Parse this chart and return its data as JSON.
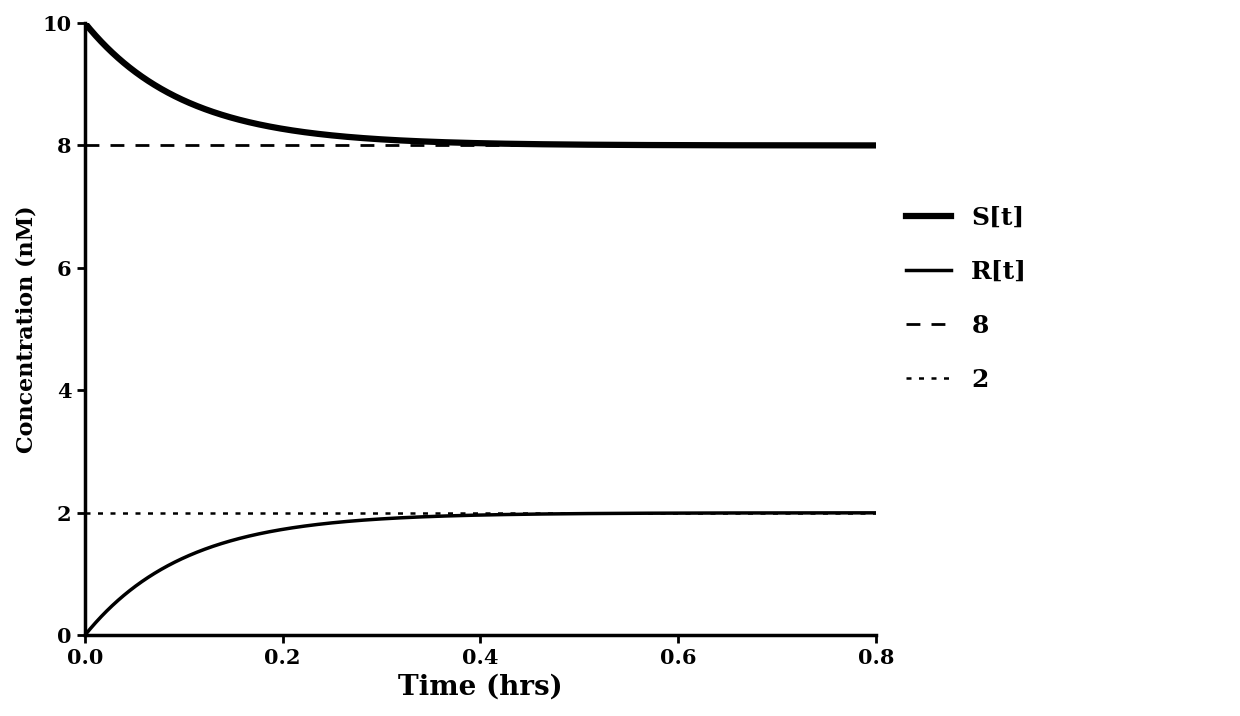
{
  "title": "",
  "xlabel": "Time (hrs)",
  "ylabel": "Concentration (nM)",
  "xlim": [
    0.0,
    0.8
  ],
  "ylim": [
    0.0,
    10.0
  ],
  "xticks": [
    0.0,
    0.2,
    0.4,
    0.6,
    0.8
  ],
  "yticks": [
    0,
    2,
    4,
    6,
    8,
    10
  ],
  "S0": 10.0,
  "R0": 0.0,
  "S_inf": 8.0,
  "R_inf": 2.0,
  "rate": 10.0,
  "hline_8": 8.0,
  "hline_2": 2.0,
  "line_color": "#000000",
  "dashed_color": "#000000",
  "legend_labels": [
    "S[t]",
    "R[t]",
    "8",
    "2"
  ],
  "S_lw": 4.5,
  "R_lw": 2.5,
  "dashed_lw_8": 2.0,
  "dashed_lw_2": 1.8,
  "xlabel_fontsize": 20,
  "ylabel_fontsize": 16,
  "tick_fontsize": 15,
  "legend_fontsize": 18,
  "background_color": "#ffffff"
}
